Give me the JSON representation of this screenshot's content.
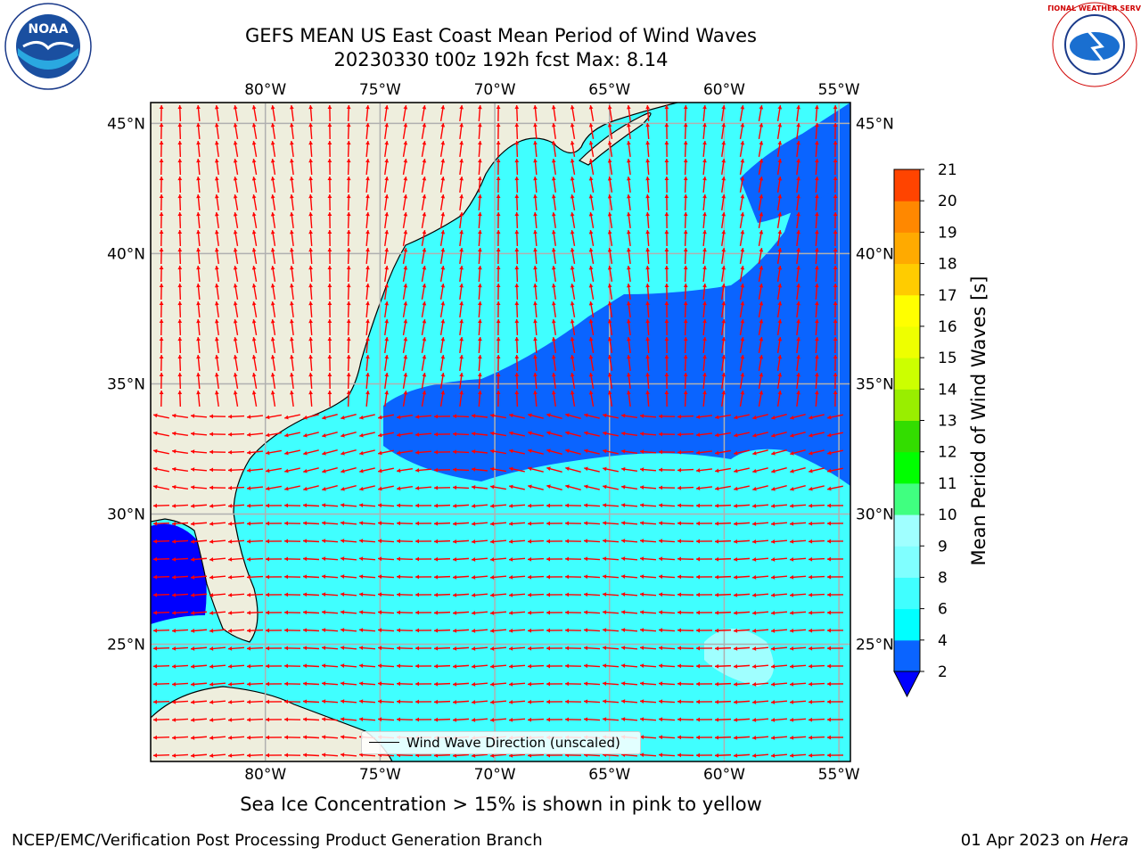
{
  "header": {
    "title": "GEFS MEAN US East Coast Mean Period of Wind Waves",
    "subtitle": "20230330 t00z 192h fcst   Max: 8.14"
  },
  "logos": {
    "noaa": "NOAA",
    "nws": "NATIONAL WEATHER SERVICE"
  },
  "map": {
    "lon_labels": [
      "80°W",
      "75°W",
      "70°W",
      "65°W",
      "60°W",
      "55°W"
    ],
    "lat_labels": [
      "45°N",
      "40°N",
      "35°N",
      "30°N",
      "25°N"
    ],
    "lon_values": [
      -80,
      -75,
      -70,
      -65,
      -60,
      -55
    ],
    "lat_values": [
      45,
      40,
      35,
      30,
      25
    ],
    "extent": {
      "lon": [
        -85,
        -54.5
      ],
      "lat": [
        20.5,
        45.8
      ]
    },
    "legend_label": "Wind Wave Direction (unscaled)",
    "colors": {
      "land": "#eeeedd",
      "arrow": "#ff0000",
      "grid": "#b0b0b0"
    }
  },
  "colorbar": {
    "label": "Mean Period of Wind Waves [s]",
    "ticks": [
      "2",
      "4",
      "6",
      "8",
      "9",
      "10",
      "11",
      "12",
      "13",
      "14",
      "15",
      "16",
      "17",
      "18",
      "19",
      "20",
      "21"
    ],
    "levels": [
      2,
      4,
      6,
      8,
      9,
      10,
      11,
      12,
      13,
      14,
      15,
      16,
      17,
      18,
      19,
      20,
      21
    ],
    "colors": [
      "#0a64ff",
      "#00ffff",
      "#40ffff",
      "#80ffff",
      "#a0ffff",
      "#40ff80",
      "#00ff00",
      "#33dd00",
      "#99ee00",
      "#ccff00",
      "#eeff00",
      "#ffff00",
      "#ffcc00",
      "#ffaa00",
      "#ff8800",
      "#ff4400",
      "#ff0000"
    ],
    "extend_color": "#0000ff"
  },
  "footer": {
    "caption": "Sea Ice Concentration > 15% is shown in pink to yellow",
    "credit": "NCEP/EMC/Verification Post Processing Product Generation Branch",
    "date": "01 Apr 2023 on",
    "machine": "Hera"
  }
}
